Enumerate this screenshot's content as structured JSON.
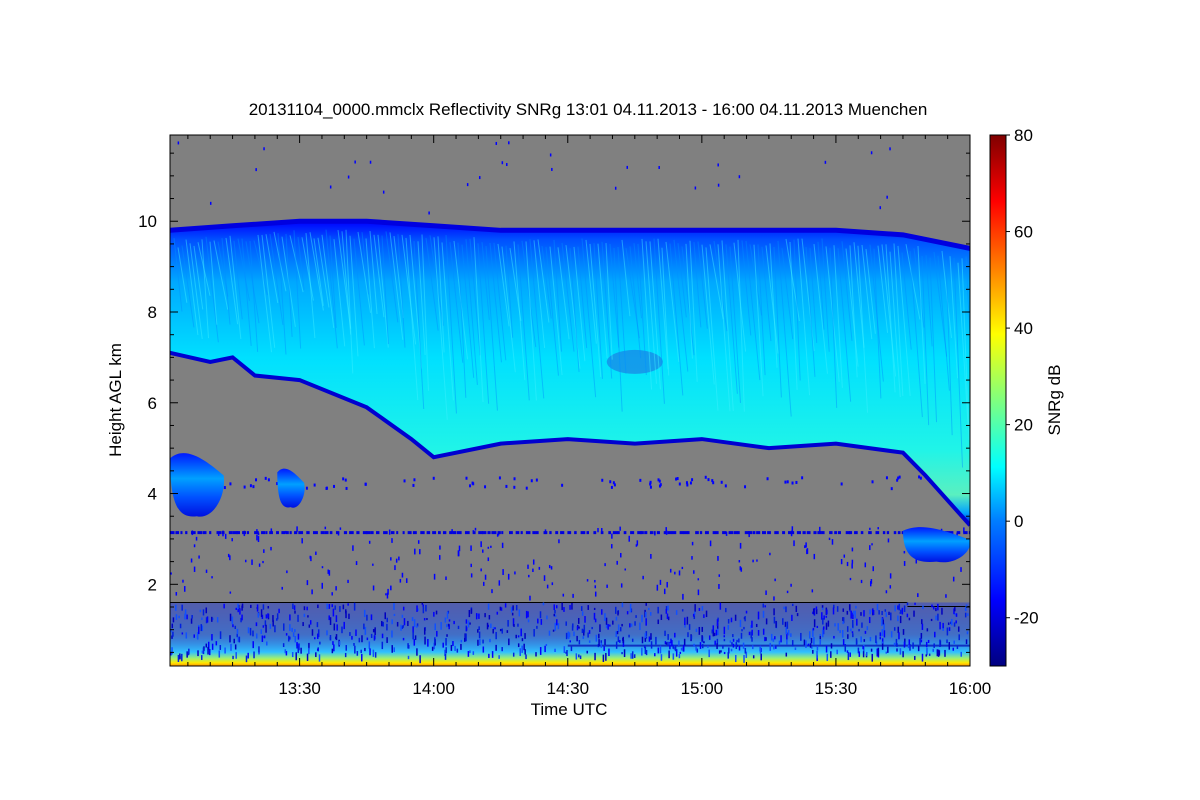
{
  "chart_data": {
    "type": "heatmap",
    "title": "20131104_0000.mmclx Reflectivity SNRg   13:01 04.11.2013 - 16:00 04.11.2013 Muenchen",
    "xlabel": "Time UTC",
    "ylabel": "Height AGL km",
    "xlim": [
      "13:01",
      "16:00"
    ],
    "ylim": [
      0.2,
      11.9
    ],
    "x_ticks": [
      "13:30",
      "14:00",
      "14:30",
      "15:00",
      "15:30",
      "16:00"
    ],
    "y_ticks": [
      "2",
      "4",
      "6",
      "8",
      "10"
    ],
    "colorbar": {
      "label": "SNRg dB",
      "range": [
        -30,
        80
      ],
      "ticks": [
        "-20",
        "0",
        "20",
        "40",
        "60",
        "80"
      ],
      "colormap": "jet"
    },
    "background_color": "#808080",
    "features": {
      "main_cloud_top_km": [
        [
          "13:01",
          9.8
        ],
        [
          "13:15",
          9.9
        ],
        [
          "13:30",
          10.0
        ],
        [
          "13:45",
          10.0
        ],
        [
          "14:00",
          9.9
        ],
        [
          "14:15",
          9.8
        ],
        [
          "14:30",
          9.8
        ],
        [
          "14:45",
          9.8
        ],
        [
          "15:00",
          9.8
        ],
        [
          "15:15",
          9.8
        ],
        [
          "15:30",
          9.8
        ],
        [
          "15:45",
          9.7
        ],
        [
          "16:00",
          9.4
        ]
      ],
      "main_cloud_base_km": [
        [
          "13:01",
          7.1
        ],
        [
          "13:10",
          6.9
        ],
        [
          "13:15",
          7.0
        ],
        [
          "13:20",
          6.6
        ],
        [
          "13:30",
          6.5
        ],
        [
          "13:45",
          5.9
        ],
        [
          "13:55",
          5.2
        ],
        [
          "14:00",
          4.8
        ],
        [
          "14:15",
          5.1
        ],
        [
          "14:30",
          5.2
        ],
        [
          "14:45",
          5.1
        ],
        [
          "15:00",
          5.2
        ],
        [
          "15:15",
          5.0
        ],
        [
          "15:30",
          5.1
        ],
        [
          "15:45",
          4.9
        ],
        [
          "15:50",
          4.4
        ],
        [
          "16:00",
          3.3
        ]
      ],
      "lower_cloud_patches": [
        {
          "time": [
            "13:01",
            "13:13"
          ],
          "height_km": [
            3.5,
            5.0
          ]
        },
        {
          "time": [
            "13:25",
            "13:31"
          ],
          "height_km": [
            3.7,
            4.6
          ]
        },
        {
          "time": [
            "15:45",
            "16:00"
          ],
          "height_km": [
            2.5,
            3.3
          ]
        }
      ],
      "boundary_layer_top_km": 1.6,
      "clutter_line_km": 3.15
    }
  }
}
